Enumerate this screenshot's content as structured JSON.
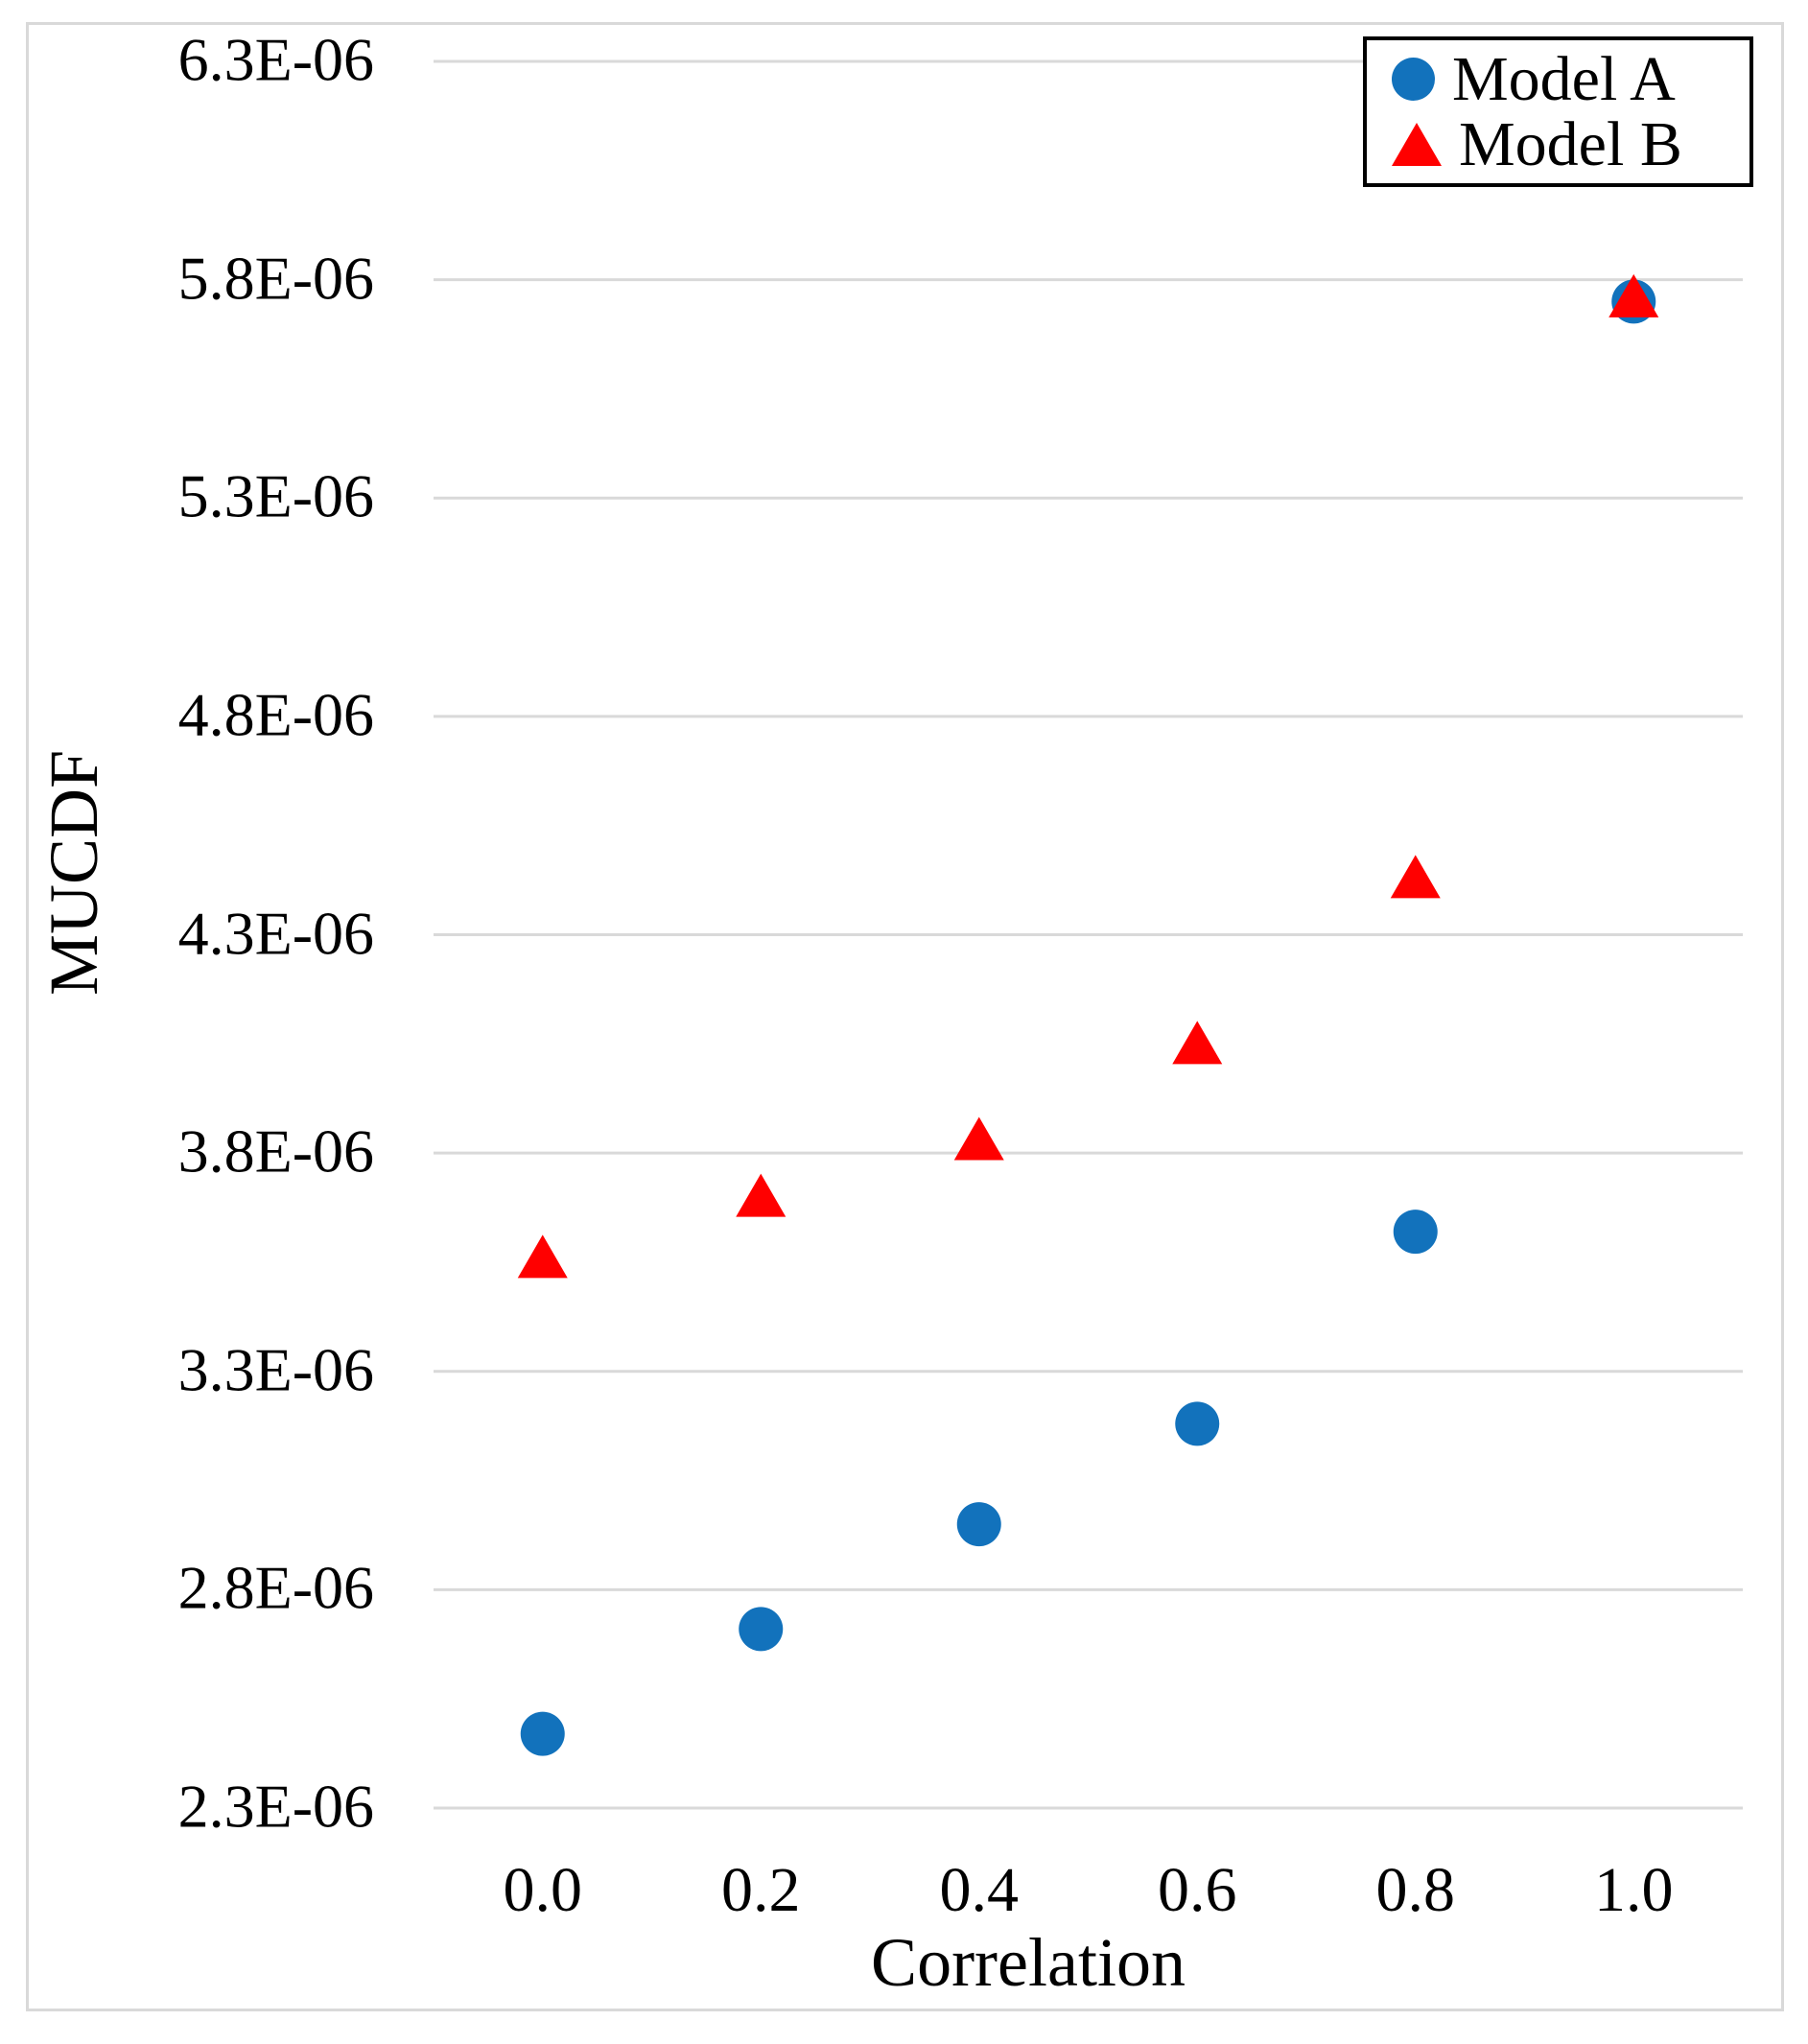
{
  "chart_data": {
    "type": "scatter",
    "title": "",
    "xlabel": "Correlation",
    "ylabel": "MUCDF",
    "x": [
      0.0,
      0.2,
      0.4,
      0.6,
      0.8,
      1.0
    ],
    "series": [
      {
        "name": "Model A",
        "marker": "circle",
        "color": "#1272bc",
        "values": [
          2.47e-06,
          2.71e-06,
          2.95e-06,
          3.18e-06,
          3.62e-06,
          5.75e-06
        ]
      },
      {
        "name": "Model B",
        "marker": "triangle",
        "color": "#ff0000",
        "values": [
          3.56e-06,
          3.7e-06,
          3.83e-06,
          4.05e-06,
          4.43e-06,
          5.76e-06
        ]
      }
    ],
    "xlim": [
      -0.1,
      1.1
    ],
    "ylim": [
      2.3e-06,
      6.3e-06
    ],
    "x_ticks": {
      "values": [
        0.0,
        0.2,
        0.4,
        0.6,
        0.8,
        1.0
      ],
      "labels": [
        "0.0",
        "0.2",
        "0.4",
        "0.6",
        "0.8",
        "1.0"
      ]
    },
    "y_ticks": {
      "values": [
        6.3e-06,
        5.8e-06,
        5.3e-06,
        4.8e-06,
        4.3e-06,
        3.8e-06,
        3.3e-06,
        2.8e-06,
        2.3e-06
      ],
      "labels": [
        "6.3E-06",
        "5.8E-06",
        "5.3E-06",
        "4.8E-06",
        "4.3E-06",
        "3.8E-06",
        "3.3E-06",
        "2.8E-06",
        "2.3E-06"
      ]
    },
    "grid": "horizontal-only",
    "legend_position": "top-right",
    "legend_entries": [
      "Model A",
      "Model B"
    ],
    "colors": {
      "gridline": "#d9d9d9",
      "frame_border": "#d9d9d9",
      "legend_border": "#000000",
      "text": "#000000",
      "background": "#ffffff"
    }
  }
}
